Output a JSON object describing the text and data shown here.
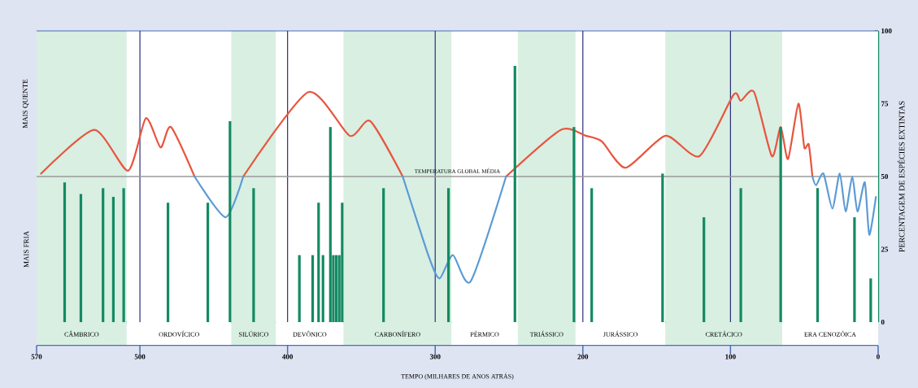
{
  "chart_data": {
    "type": "bar",
    "xlabel": "TEMPO (MILHARES DE ANOS ATRÁS)",
    "ylabel": "PERCENTAGEM DE ESPÉCIES EXTINTAS",
    "annotations": [
      "MAIS QUENTE",
      "MAIS FRIA"
    ],
    "xlim": [
      570,
      0
    ],
    "xticks": [
      570,
      500,
      400,
      300,
      200,
      100,
      0
    ],
    "ylim": [
      0,
      100
    ],
    "yticks": [
      0,
      25,
      50,
      75,
      100
    ],
    "grid": "x",
    "ref_lines": [
      {
        "axis": "y",
        "value": 50,
        "label": "TEMPERATURA GLOBAL MÉDIA",
        "color": "#9a9a9a"
      }
    ],
    "bands": [
      {
        "axis": "x",
        "from": 570,
        "to": 509,
        "label": "CÂMBRICO",
        "color": "#d8efe2"
      },
      {
        "axis": "x",
        "from": 509,
        "to": 438,
        "label": "ORDOVÍCICO",
        "color": "#ffffff"
      },
      {
        "axis": "x",
        "from": 438,
        "to": 408,
        "label": "SILÚRICO",
        "color": "#d8efe2"
      },
      {
        "axis": "x",
        "from": 408,
        "to": 362,
        "label": "DEVÔNICO",
        "color": "#ffffff"
      },
      {
        "axis": "x",
        "from": 362,
        "to": 289,
        "label": "CARBONÍFERO",
        "color": "#d8efe2"
      },
      {
        "axis": "x",
        "from": 289,
        "to": 244,
        "label": "PÉRMICO",
        "color": "#ffffff"
      },
      {
        "axis": "x",
        "from": 244,
        "to": 205,
        "label": "TRIÁSSICO",
        "color": "#d8efe2"
      },
      {
        "axis": "x",
        "from": 205,
        "to": 144,
        "label": "JURÁSSICO",
        "color": "#ffffff"
      },
      {
        "axis": "x",
        "from": 144,
        "to": 65,
        "label": "CRETÁCICO",
        "color": "#d8efe2"
      },
      {
        "axis": "x",
        "from": 65,
        "to": 0,
        "label": "ERA CENOZÓICA",
        "color": "#ffffff"
      }
    ],
    "series": [
      {
        "color": "#138a62",
        "x": [
          551,
          540,
          525,
          518,
          511,
          481,
          454,
          439,
          423,
          392,
          383,
          379,
          376,
          371,
          369,
          367,
          365,
          363,
          335,
          291,
          246,
          206,
          194,
          146,
          118,
          93,
          66,
          41,
          16,
          5
        ],
        "values": [
          48,
          44,
          46,
          43,
          46,
          41,
          41,
          69,
          46,
          23,
          23,
          41,
          23,
          67,
          23,
          23,
          23,
          41,
          46,
          46,
          88,
          67,
          46,
          51,
          36,
          46,
          67,
          46,
          36,
          15
        ]
      },
      {
        "type": "line",
        "color": "#e8553e",
        "x": [
          567,
          531,
          508,
          496,
          486,
          479,
          463,
          446,
          430,
          386,
          358,
          344,
          322,
          290,
          252,
          215,
          198,
          187,
          171,
          144,
          121,
          98,
          93,
          84,
          72,
          66,
          61,
          54,
          50,
          47,
          44.5
        ],
        "values": [
          51,
          66,
          52,
          70,
          60,
          67,
          50,
          null,
          50,
          79,
          64,
          69,
          50,
          null,
          50,
          66,
          64,
          62,
          53,
          64,
          57,
          78,
          76,
          79,
          57,
          67,
          56,
          75,
          60,
          61,
          50
        ]
      },
      {
        "type": "line",
        "color": "#5b9bd5",
        "x": [
          463,
          442,
          430,
          400,
          322,
          304,
          297,
          288,
          276,
          252,
          100,
          44.5,
          42,
          37,
          31,
          26,
          22,
          17.5,
          14,
          9,
          6,
          1.5
        ],
        "values": [
          50,
          36,
          50,
          null,
          50,
          22,
          15,
          23,
          14,
          50,
          null,
          50,
          47,
          51,
          39,
          51,
          38,
          50,
          38,
          48,
          30,
          43
        ]
      }
    ]
  }
}
